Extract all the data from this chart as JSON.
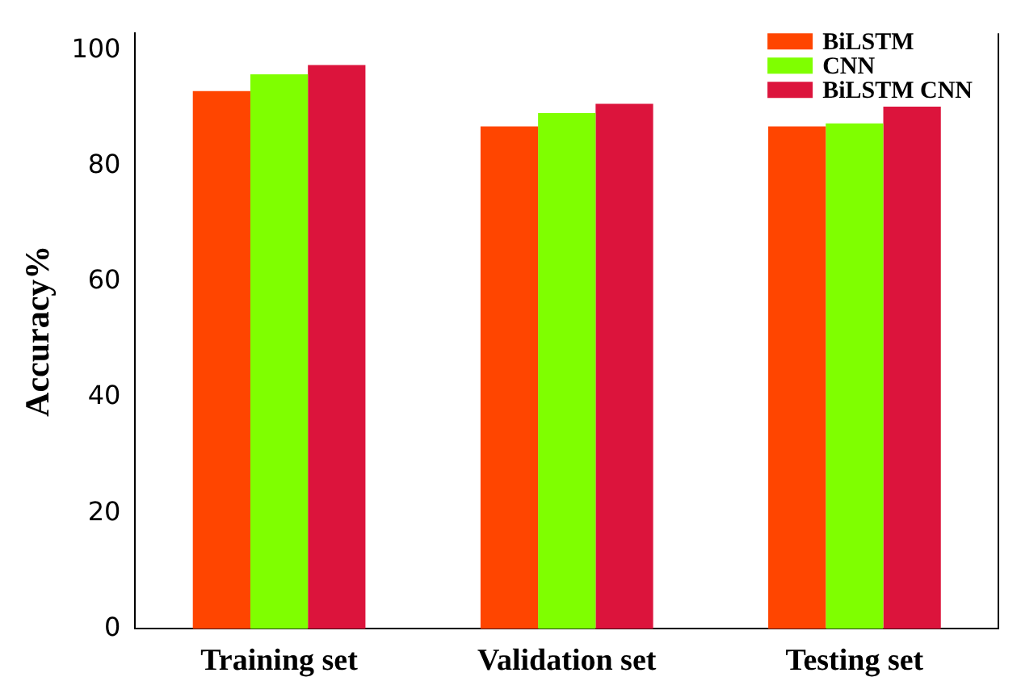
{
  "chart_data": {
    "type": "bar",
    "ylabel": "Accuracy%",
    "categories": [
      "Training set",
      "Validation set",
      "Testing set"
    ],
    "series": [
      {
        "name": "BiLSTM",
        "color": "#ff4500",
        "values": [
          93.0,
          86.9,
          86.9
        ]
      },
      {
        "name": "CNN",
        "color": "#7fff00",
        "values": [
          95.9,
          89.2,
          87.4
        ]
      },
      {
        "name": "BiLSTM CNN",
        "color": "#dc143c",
        "values": [
          97.5,
          90.8,
          90.3
        ]
      }
    ],
    "ylim": [
      0,
      103
    ],
    "yticks": [
      0,
      20,
      40,
      60,
      80,
      100
    ],
    "grid": false,
    "legend": "top right"
  }
}
